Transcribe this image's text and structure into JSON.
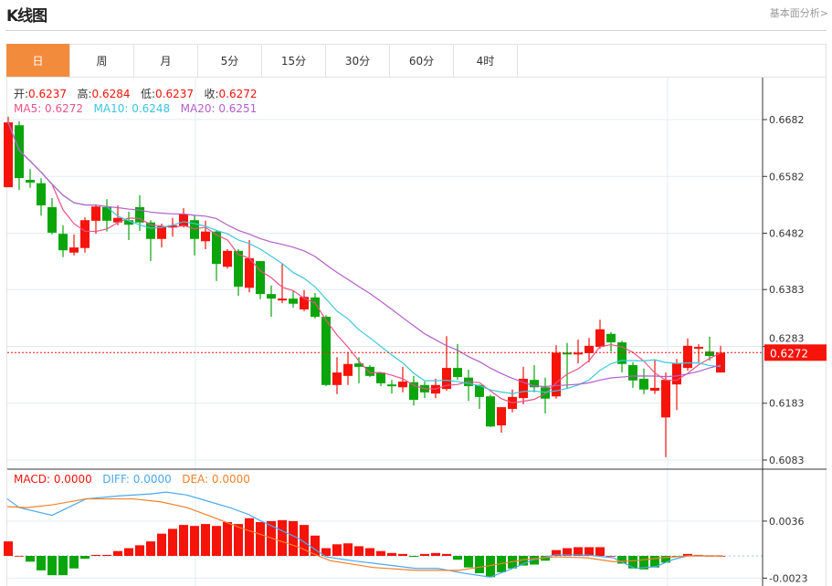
{
  "header": {
    "title": "K线图",
    "link": "基本面分析>"
  },
  "tabs": [
    {
      "label": "日",
      "active": true
    },
    {
      "label": "周"
    },
    {
      "label": "月"
    },
    {
      "label": "5分"
    },
    {
      "label": "15分"
    },
    {
      "label": "30分"
    },
    {
      "label": "60分"
    },
    {
      "label": "4时"
    }
  ],
  "ohlc_info": {
    "open_label": "开:",
    "open": "0.6237",
    "high_label": "高:",
    "high": "0.6284",
    "low_label": "低:",
    "low": "0.6237",
    "close_label": "收:",
    "close": "0.6272"
  },
  "ma_info": {
    "ma5": "MA5: 0.6272",
    "ma10": "MA10: 0.6248",
    "ma20": "MA20: 0.6251"
  },
  "macd_info": {
    "macd": "MACD: 0.0000",
    "diff": "DIFF: 0.0000",
    "dea": "DEA: 0.0000"
  },
  "colors": {
    "up": "#f5130a",
    "down": "#0aa50a",
    "ma5": "#ea5287",
    "ma10": "#3cc6dd",
    "ma20": "#b35fc9",
    "diff": "#4aa8f0",
    "dea": "#f5802a",
    "accent": "#f38b3c"
  },
  "chart_data": [
    {
      "type": "candlestick",
      "title": "K线图",
      "y_ticks": [
        "0.6682",
        "0.6582",
        "0.6482",
        "0.6383",
        "0.6283",
        "0.6183",
        "0.6083"
      ],
      "ylim": [
        0.6083,
        0.6682
      ],
      "last_price": "0.6272",
      "ma_periods": [
        5,
        10,
        20
      ],
      "candles": [
        [
          0.6563,
          0.6687,
          0.6563,
          0.6677
        ],
        [
          0.6672,
          0.6679,
          0.6558,
          0.6579
        ],
        [
          0.6576,
          0.6595,
          0.6562,
          0.6571
        ],
        [
          0.657,
          0.6579,
          0.6513,
          0.6531
        ],
        [
          0.6528,
          0.6544,
          0.648,
          0.6483
        ],
        [
          0.6481,
          0.6496,
          0.644,
          0.6452
        ],
        [
          0.6448,
          0.648,
          0.6443,
          0.6457
        ],
        [
          0.6456,
          0.651,
          0.6448,
          0.6505
        ],
        [
          0.6504,
          0.6533,
          0.6481,
          0.6529
        ],
        [
          0.6528,
          0.6542,
          0.6485,
          0.6504
        ],
        [
          0.6501,
          0.6531,
          0.6496,
          0.6509
        ],
        [
          0.6505,
          0.652,
          0.647,
          0.6497
        ],
        [
          0.6528,
          0.6549,
          0.6486,
          0.6501
        ],
        [
          0.6501,
          0.6505,
          0.6433,
          0.6472
        ],
        [
          0.6472,
          0.6499,
          0.6457,
          0.6494
        ],
        [
          0.6492,
          0.6509,
          0.6476,
          0.6496
        ],
        [
          0.6494,
          0.6526,
          0.6492,
          0.6515
        ],
        [
          0.6505,
          0.6513,
          0.6443,
          0.6472
        ],
        [
          0.6468,
          0.6504,
          0.6454,
          0.6485
        ],
        [
          0.6485,
          0.6488,
          0.6398,
          0.6428
        ],
        [
          0.6423,
          0.6454,
          0.642,
          0.6451
        ],
        [
          0.6451,
          0.6454,
          0.6372,
          0.6388
        ],
        [
          0.6386,
          0.647,
          0.6378,
          0.6438
        ],
        [
          0.6433,
          0.6433,
          0.6366,
          0.6375
        ],
        [
          0.6375,
          0.639,
          0.6335,
          0.6367
        ],
        [
          0.6364,
          0.6428,
          0.6359,
          0.6367
        ],
        [
          0.6367,
          0.638,
          0.6351,
          0.6358
        ],
        [
          0.6348,
          0.6382,
          0.6345,
          0.637
        ],
        [
          0.6369,
          0.6377,
          0.6332,
          0.6335
        ],
        [
          0.6335,
          0.6338,
          0.6213,
          0.6215
        ],
        [
          0.6215,
          0.6264,
          0.6199,
          0.6237
        ],
        [
          0.6231,
          0.6273,
          0.6215,
          0.6252
        ],
        [
          0.6253,
          0.6264,
          0.6218,
          0.6247
        ],
        [
          0.6247,
          0.625,
          0.6229,
          0.6231
        ],
        [
          0.6237,
          0.6237,
          0.6213,
          0.6218
        ],
        [
          0.6216,
          0.6224,
          0.62,
          0.6213
        ],
        [
          0.6211,
          0.6247,
          0.6202,
          0.6221
        ],
        [
          0.622,
          0.6231,
          0.6179,
          0.6189
        ],
        [
          0.6215,
          0.6221,
          0.6192,
          0.6202
        ],
        [
          0.62,
          0.6226,
          0.6192,
          0.6215
        ],
        [
          0.6208,
          0.6301,
          0.6205,
          0.6245
        ],
        [
          0.6245,
          0.6287,
          0.6224,
          0.6229
        ],
        [
          0.6228,
          0.6242,
          0.6187,
          0.6213
        ],
        [
          0.6215,
          0.6216,
          0.6173,
          0.6194
        ],
        [
          0.6195,
          0.6198,
          0.6141,
          0.6142
        ],
        [
          0.6144,
          0.6176,
          0.6131,
          0.6176
        ],
        [
          0.6173,
          0.6207,
          0.6167,
          0.6194
        ],
        [
          0.6192,
          0.6247,
          0.6181,
          0.6226
        ],
        [
          0.6224,
          0.625,
          0.6202,
          0.6211
        ],
        [
          0.6211,
          0.6228,
          0.6165,
          0.6191
        ],
        [
          0.6195,
          0.6285,
          0.6191,
          0.6272
        ],
        [
          0.6272,
          0.6289,
          0.6208,
          0.6271
        ],
        [
          0.6271,
          0.6295,
          0.6253,
          0.6272
        ],
        [
          0.6271,
          0.6298,
          0.6255,
          0.6284
        ],
        [
          0.6282,
          0.633,
          0.6279,
          0.6313
        ],
        [
          0.6305,
          0.6308,
          0.6274,
          0.629
        ],
        [
          0.629,
          0.6293,
          0.6237,
          0.6252
        ],
        [
          0.625,
          0.6255,
          0.621,
          0.6223
        ],
        [
          0.6226,
          0.6244,
          0.6199,
          0.6207
        ],
        [
          0.6205,
          0.626,
          0.6199,
          0.621
        ],
        [
          0.6158,
          0.6237,
          0.6088,
          0.6224
        ],
        [
          0.6216,
          0.6261,
          0.6171,
          0.6253
        ],
        [
          0.6245,
          0.6297,
          0.624,
          0.6284
        ],
        [
          0.6279,
          0.6287,
          0.6255,
          0.6282
        ],
        [
          0.6274,
          0.63,
          0.6258,
          0.6266
        ],
        [
          0.6237,
          0.6284,
          0.6237,
          0.6272
        ]
      ]
    },
    {
      "type": "bar",
      "title": "MACD",
      "y_ticks": [
        "0.0036",
        "-0.0023"
      ],
      "macd": [
        0.0015,
        0,
        -0.0006,
        -0.0015,
        -0.002,
        -0.002,
        -0.0013,
        -0.0003,
        0.0001,
        0.0001,
        0.0005,
        0.0008,
        0.0011,
        0.0015,
        0.0023,
        0.0028,
        0.0032,
        0.0031,
        0.0033,
        0.0031,
        0.0035,
        0.0033,
        0.0039,
        0.0035,
        0.0036,
        0.0037,
        0.0036,
        0.0032,
        0.0021,
        0.0008,
        0.0012,
        0.0013,
        0.001,
        0.0008,
        0.0005,
        0.0003,
        0.0002,
        -0.0001,
        0.0002,
        0.0003,
        0.0002,
        -0.0004,
        -0.0012,
        -0.0018,
        -0.0022,
        -0.0017,
        -0.0013,
        -0.001,
        -0.0009,
        -0.0005,
        0.0006,
        0.0008,
        0.0009,
        0.0009,
        0.0009,
        0,
        -0.0008,
        -0.0013,
        -0.0014,
        -0.0012,
        -0.0007,
        -0.0001,
        0.0002,
        0.0001,
        0,
        0
      ],
      "diff": [
        [
          -0.5,
          0.0059
        ],
        [
          1.0,
          0.005
        ],
        [
          4.0,
          0.0042
        ],
        [
          7.1,
          0.0059
        ],
        [
          10.0,
          0.0062
        ],
        [
          12.9,
          0.0064
        ],
        [
          14.4,
          0.0066
        ],
        [
          16.3,
          0.0063
        ],
        [
          17.8,
          0.0058
        ],
        [
          20.2,
          0.005
        ],
        [
          21.9,
          0.0043
        ],
        [
          23.1,
          0.0036
        ],
        [
          26.5,
          0.0018
        ],
        [
          29.0,
          -0.0001
        ],
        [
          31.4,
          -0.0005
        ],
        [
          34.3,
          -0.0009
        ],
        [
          37.2,
          -0.0013
        ],
        [
          39.2,
          -0.0013
        ],
        [
          41.6,
          -0.0018
        ],
        [
          44.0,
          -0.0022
        ],
        [
          46.0,
          -0.0013
        ],
        [
          47.9,
          -0.0004
        ],
        [
          49.9,
          0.0001
        ],
        [
          52.8,
          0.0001
        ],
        [
          55.2,
          -0.0002
        ],
        [
          57.2,
          -0.0013
        ],
        [
          59.1,
          -0.0011
        ],
        [
          60.6,
          -0.0004
        ],
        [
          62.0,
          0
        ],
        [
          65.2,
          0
        ]
      ],
      "dea": [
        [
          -0.5,
          0.0051
        ],
        [
          1.7,
          0.005
        ],
        [
          4.1,
          0.0053
        ],
        [
          7.1,
          0.0059
        ],
        [
          11.4,
          0.0059
        ],
        [
          13.9,
          0.0056
        ],
        [
          16.3,
          0.005
        ],
        [
          18.7,
          0.004
        ],
        [
          21.2,
          0.0029
        ],
        [
          23.6,
          0.002
        ],
        [
          26.5,
          0.0009
        ],
        [
          28.5,
          -0.0001
        ],
        [
          29.4,
          -0.0005
        ],
        [
          33.3,
          -0.0012
        ],
        [
          37.2,
          -0.0015
        ],
        [
          41.1,
          -0.0015
        ],
        [
          44.0,
          -0.001
        ],
        [
          47.0,
          -0.0004
        ],
        [
          49.9,
          -0.0001
        ],
        [
          52.8,
          -0.0002
        ],
        [
          55.2,
          -0.0006
        ],
        [
          57.2,
          -0.0005
        ],
        [
          59.6,
          -0.0002
        ],
        [
          62.0,
          0
        ],
        [
          65.2,
          0
        ]
      ]
    }
  ]
}
